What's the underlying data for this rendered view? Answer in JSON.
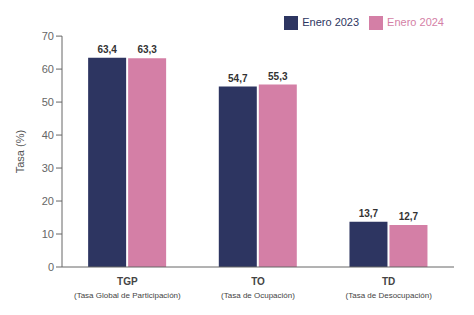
{
  "chart_data": {
    "type": "bar",
    "categories": [
      "TGP",
      "TO",
      "TD"
    ],
    "category_subtitles": [
      "(Tasa Global de Participación)",
      "(Tasa de Ocupación)",
      "(Tasa de Desocupación)"
    ],
    "series": [
      {
        "name": "Enero 2023",
        "color": "#2d3561",
        "values": [
          63.4,
          54.7,
          13.7
        ],
        "value_labels": [
          "63,4",
          "54,7",
          "13,7"
        ]
      },
      {
        "name": "Enero 2024",
        "color": "#d47fa6",
        "values": [
          63.3,
          55.3,
          12.7
        ],
        "value_labels": [
          "63,3",
          "55,3",
          "12,7"
        ]
      }
    ],
    "ylabel": "Tasa (%)",
    "ylim": [
      0,
      70
    ],
    "yticks": [
      0,
      10,
      20,
      30,
      40,
      50,
      60,
      70
    ],
    "grid": false,
    "legend": "upper right",
    "data_labels": true
  }
}
